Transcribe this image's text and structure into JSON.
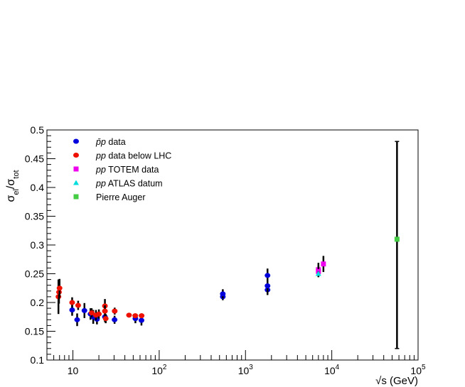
{
  "chart_data": {
    "type": "scatter",
    "title": "",
    "xlabel_prefix": "√",
    "xlabel": "s (GeV)",
    "ylabel_main": "σ",
    "ylabel_sub1": "el",
    "ylabel_sep": "/",
    "ylabel_sub2": "tot",
    "xscale": "log",
    "xlim": [
      5,
      100000
    ],
    "ylim": [
      0.1,
      0.5
    ],
    "grid": false,
    "legend_position": "top-left",
    "x_ticks": [
      {
        "value": 10,
        "base": "10",
        "exp": ""
      },
      {
        "value": 100,
        "base": "10",
        "exp": "2"
      },
      {
        "value": 1000,
        "base": "10",
        "exp": "3"
      },
      {
        "value": 10000,
        "base": "10",
        "exp": "4"
      },
      {
        "value": 100000,
        "base": "10",
        "exp": "5"
      }
    ],
    "y_ticks": [
      {
        "value": 0.1,
        "label": "0.1"
      },
      {
        "value": 0.15,
        "label": "0.15"
      },
      {
        "value": 0.2,
        "label": "0.2"
      },
      {
        "value": 0.25,
        "label": "0.25"
      },
      {
        "value": 0.3,
        "label": "0.3"
      },
      {
        "value": 0.35,
        "label": "0.35"
      },
      {
        "value": 0.4,
        "label": "0.4"
      },
      {
        "value": 0.45,
        "label": "0.45"
      },
      {
        "value": 0.5,
        "label": "0.5"
      }
    ],
    "series": [
      {
        "name_prefix": "",
        "name_em": "p̄p",
        "name_suffix": " data",
        "marker": "circle",
        "color": "#0000dd",
        "points": [
          {
            "x": 9.8,
            "y": 0.187,
            "err": 0.01
          },
          {
            "x": 11.2,
            "y": 0.17,
            "err": 0.011
          },
          {
            "x": 13.6,
            "y": 0.186,
            "err": 0.013
          },
          {
            "x": 16.0,
            "y": 0.18,
            "err": 0.01
          },
          {
            "x": 17.2,
            "y": 0.175,
            "err": 0.012
          },
          {
            "x": 19.0,
            "y": 0.171,
            "err": 0.009
          },
          {
            "x": 23.5,
            "y": 0.175,
            "err": 0.009
          },
          {
            "x": 30.4,
            "y": 0.17,
            "err": 0.007
          },
          {
            "x": 53.0,
            "y": 0.172,
            "err": 0.008
          },
          {
            "x": 62.3,
            "y": 0.169,
            "err": 0.009
          },
          {
            "x": 546,
            "y": 0.21,
            "err": 0.006
          },
          {
            "x": 546,
            "y": 0.215,
            "err": 0.008
          },
          {
            "x": 1800,
            "y": 0.222,
            "err": 0.009
          },
          {
            "x": 1800,
            "y": 0.229,
            "err": 0.013
          },
          {
            "x": 1800,
            "y": 0.247,
            "err": 0.012
          }
        ]
      },
      {
        "name_prefix": "",
        "name_em": "pp",
        "name_suffix": " data below LHC",
        "marker": "circle",
        "color": "#ee1100",
        "points": [
          {
            "x": 6.8,
            "y": 0.21,
            "err": 0.03
          },
          {
            "x": 6.9,
            "y": 0.218,
            "err": 0.02
          },
          {
            "x": 7.0,
            "y": 0.225,
            "err": 0.016
          },
          {
            "x": 9.8,
            "y": 0.2,
            "err": 0.009
          },
          {
            "x": 11.5,
            "y": 0.195,
            "err": 0.008
          },
          {
            "x": 16.5,
            "y": 0.182,
            "err": 0.008
          },
          {
            "x": 18.5,
            "y": 0.178,
            "err": 0.009
          },
          {
            "x": 20.0,
            "y": 0.18,
            "err": 0.008
          },
          {
            "x": 23.5,
            "y": 0.194,
            "err": 0.012
          },
          {
            "x": 23.5,
            "y": 0.185,
            "err": 0.01
          },
          {
            "x": 24.0,
            "y": 0.172,
            "err": 0.008
          },
          {
            "x": 30.5,
            "y": 0.185,
            "err": 0.006
          },
          {
            "x": 44.7,
            "y": 0.178,
            "err": 0.004
          },
          {
            "x": 52.8,
            "y": 0.177,
            "err": 0.004
          },
          {
            "x": 62.5,
            "y": 0.177,
            "err": 0.004
          }
        ]
      },
      {
        "name_prefix": "",
        "name_em": "pp",
        "name_suffix": " TOTEM data",
        "marker": "square",
        "color": "#ee00ee",
        "points": [
          {
            "x": 7000,
            "y": 0.257,
            "err": 0.012
          },
          {
            "x": 7000,
            "y": 0.254,
            "err": 0.01
          },
          {
            "x": 8000,
            "y": 0.267,
            "err": 0.014
          }
        ]
      },
      {
        "name_prefix": "",
        "name_em": "pp",
        "name_suffix": " ATLAS datum",
        "marker": "triangle",
        "color": "#00dddd",
        "points": [
          {
            "x": 7000,
            "y": 0.25,
            "err": 0.004
          }
        ]
      },
      {
        "name_prefix": "Pierre Auger",
        "name_em": "",
        "name_suffix": "",
        "marker": "square",
        "color": "#44cc44",
        "points": [
          {
            "x": 57000,
            "y": 0.31,
            "err_up": 0.17,
            "err_down": 0.19
          }
        ]
      }
    ]
  }
}
